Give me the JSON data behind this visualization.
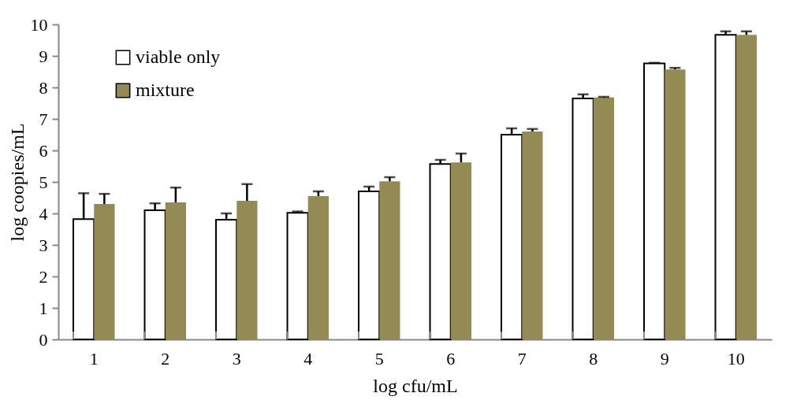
{
  "chart_data": {
    "type": "bar",
    "xlabel": "log cfu/mL",
    "ylabel": "log coopies/mL",
    "categories": [
      "1",
      "2",
      "3",
      "4",
      "5",
      "6",
      "7",
      "8",
      "9",
      "10"
    ],
    "series": [
      {
        "name": "viable only",
        "color": "#ffffff",
        "values": [
          3.82,
          4.1,
          3.8,
          4.02,
          4.7,
          5.57,
          6.5,
          7.65,
          8.76,
          9.67
        ],
        "errors": [
          0.82,
          0.22,
          0.2,
          0.04,
          0.15,
          0.13,
          0.2,
          0.13,
          0.02,
          0.11
        ]
      },
      {
        "name": "mixture",
        "color": "#948a54",
        "values": [
          4.3,
          4.35,
          4.4,
          4.55,
          5.02,
          5.62,
          6.6,
          7.68,
          8.57,
          9.67
        ],
        "errors": [
          0.32,
          0.47,
          0.53,
          0.15,
          0.13,
          0.28,
          0.08,
          0.02,
          0.05,
          0.11
        ]
      }
    ],
    "ylim": [
      0,
      10
    ],
    "yticks": [
      0,
      1,
      2,
      3,
      4,
      5,
      6,
      7,
      8,
      9,
      10
    ],
    "grid": false,
    "legend": "top left"
  }
}
